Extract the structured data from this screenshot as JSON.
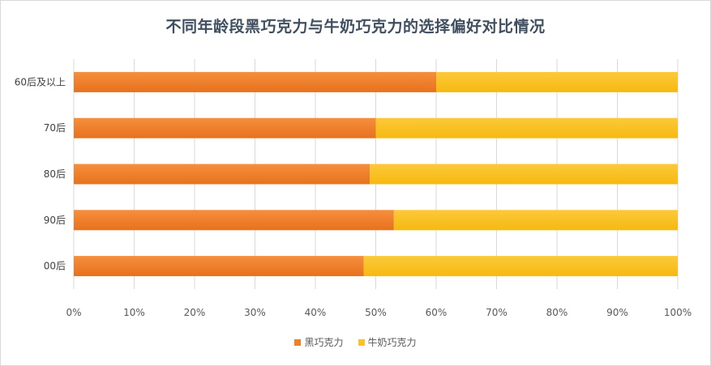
{
  "chart_data": {
    "type": "bar",
    "orientation": "horizontal",
    "stacked": "percent",
    "title": "不同年龄段黑巧克力与牛奶巧克力的选择偏好对比情况",
    "categories": [
      "60后及以上",
      "70后",
      "80后",
      "90后",
      "00后"
    ],
    "series": [
      {
        "name": "黑巧克力",
        "color": "#f07f2a",
        "values": [
          60,
          50,
          49,
          53,
          48
        ]
      },
      {
        "name": "牛奶巧克力",
        "color": "#fbc02d",
        "values": [
          40,
          50,
          51,
          47,
          52
        ]
      }
    ],
    "xlim": [
      0,
      100
    ],
    "xticks": [
      "0%",
      "10%",
      "20%",
      "30%",
      "40%",
      "50%",
      "60%",
      "70%",
      "80%",
      "90%",
      "100%"
    ],
    "grid": true,
    "legend_position": "bottom"
  }
}
